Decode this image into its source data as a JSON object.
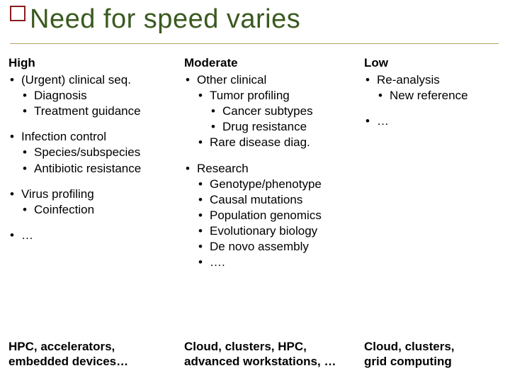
{
  "colors": {
    "title": "#3a5a1f",
    "accent_border": "#8a1d1d",
    "underline": "#b7a46a",
    "text": "#000000",
    "background": "#ffffff"
  },
  "title": "Need for speed varies",
  "columns": {
    "high": {
      "header": "High",
      "b1": "(Urgent) clinical seq.",
      "b1a": "Diagnosis",
      "b1b": "Treatment guidance",
      "b2": "Infection control",
      "b2a": "Species/subspecies",
      "b2b": "Antibiotic resistance",
      "b3": "Virus profiling",
      "b3a": "Coinfection",
      "b4": "…",
      "footer1": "HPC, accelerators,",
      "footer2": "embedded devices…"
    },
    "moderate": {
      "header": "Moderate",
      "b1": "Other clinical",
      "b1a": "Tumor profiling",
      "b1a1": "Cancer subtypes",
      "b1a2": "Drug resistance",
      "b1b": "Rare disease diag.",
      "b2": "Research",
      "b2a": "Genotype/phenotype",
      "b2b": "Causal mutations",
      "b2c": "Population genomics",
      "b2d": "Evolutionary biology",
      "b2e": "De novo assembly",
      "b2f": "….",
      "footer1": "Cloud, clusters, HPC,",
      "footer2": "advanced workstations, …"
    },
    "low": {
      "header": "Low",
      "b1": "Re-analysis",
      "b1a": "New reference",
      "b2": "…",
      "footer1": "Cloud, clusters,",
      "footer2": "grid computing"
    }
  }
}
